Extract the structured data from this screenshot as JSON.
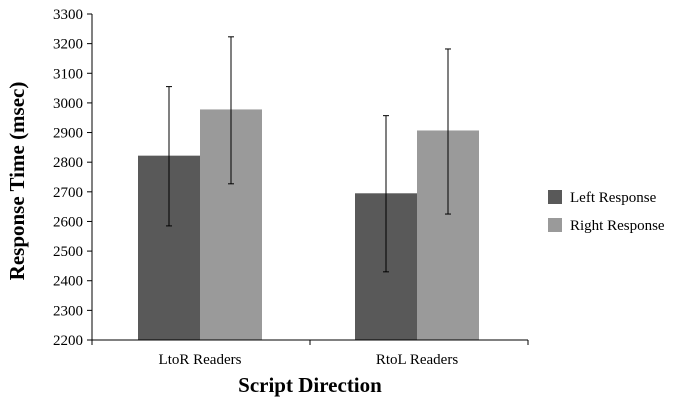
{
  "chart_data": {
    "type": "bar",
    "title": "",
    "xlabel": "Script Direction",
    "ylabel": "Response Time (msec)",
    "ylim": [
      2200,
      3300
    ],
    "yticks": [
      2200,
      2300,
      2400,
      2500,
      2600,
      2700,
      2800,
      2900,
      3000,
      3100,
      3200,
      3300
    ],
    "categories": [
      "LtoR Readers",
      "RtoL Readers"
    ],
    "series": [
      {
        "name": "Left Response",
        "color": "#595959",
        "values": [
          2822,
          2695
        ],
        "error_low": [
          2585,
          2430
        ],
        "error_high": [
          3055,
          2957
        ]
      },
      {
        "name": "Right Response",
        "color": "#9a9a9a",
        "values": [
          2978,
          2907
        ],
        "error_low": [
          2727,
          2625
        ],
        "error_high": [
          3223,
          3182
        ]
      }
    ],
    "grid": false,
    "legend_position": "right"
  }
}
